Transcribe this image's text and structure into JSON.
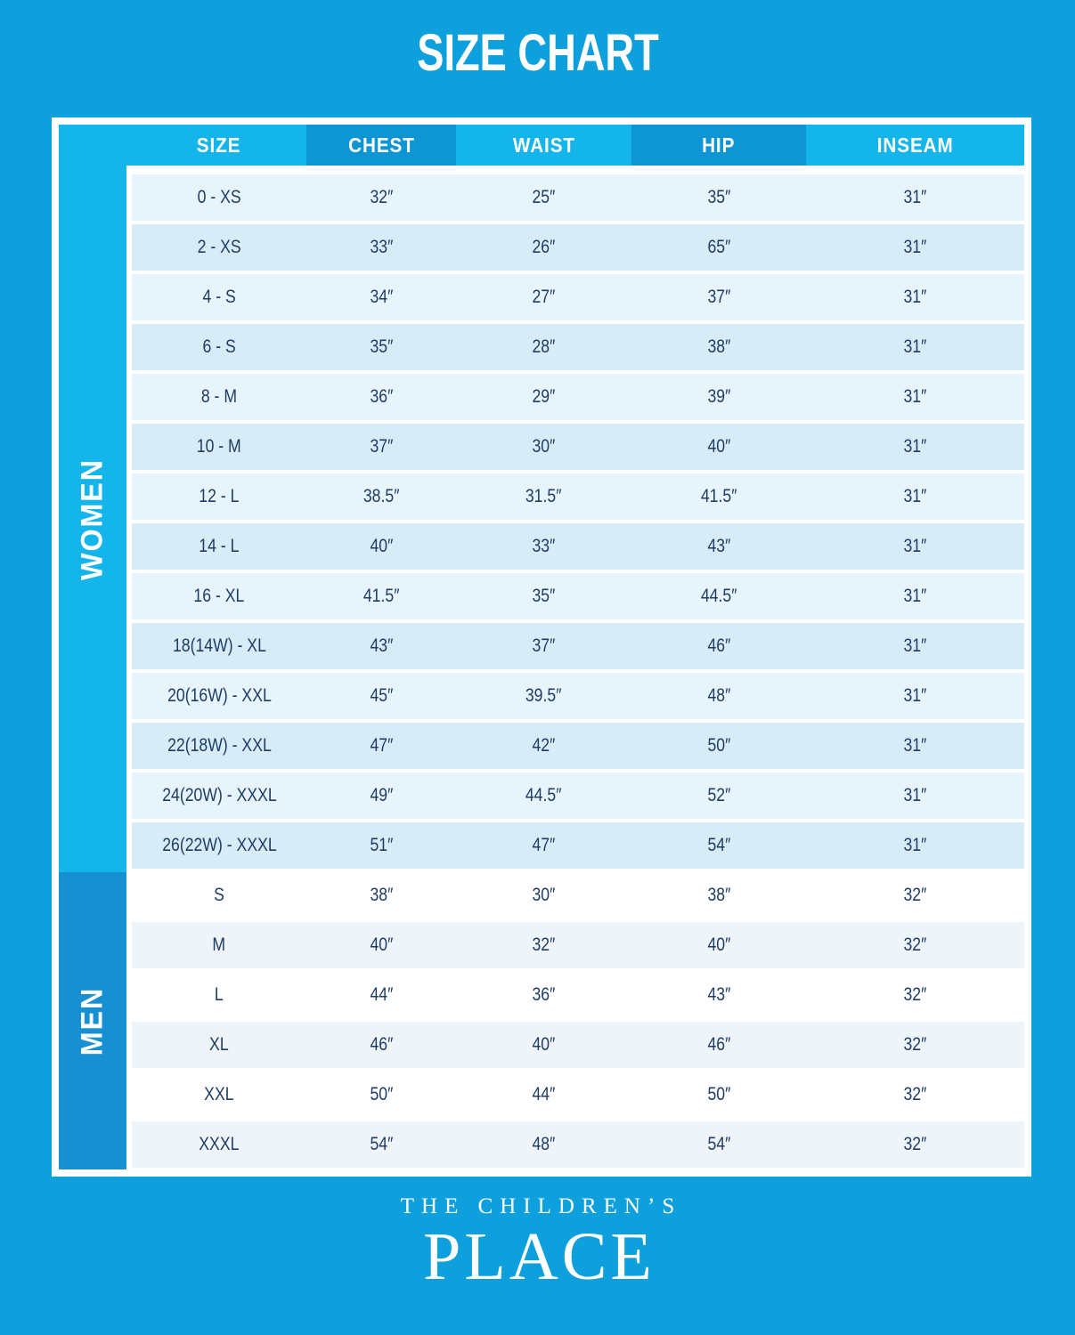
{
  "title": "SIZE CHART",
  "logo": {
    "line1": "THE CHILDREN’S",
    "line2": "PLACE"
  },
  "colors": {
    "background": "#0da0dc",
    "panel_border": "#ffffff",
    "header_light": "#14b5ea",
    "header_dark": "#0e95d3",
    "women_band": "#14b5ea",
    "men_band": "#1790d3",
    "row_women_odd": "#e8f4fb",
    "row_women_even": "#d8ecf7",
    "row_men_odd": "#ffffff",
    "row_men_even": "#eef4f8",
    "cell_text": "#1f3c64",
    "header_text": "#ffffff"
  },
  "chart_data": {
    "type": "table",
    "title": "SIZE CHART",
    "columns": [
      "SIZE",
      "CHEST",
      "WAIST",
      "HIP",
      "INSEAM"
    ],
    "header_dark_columns": [
      false,
      true,
      false,
      true,
      false
    ],
    "sections": [
      {
        "label": "WOMEN",
        "rows": [
          [
            "0 - XS",
            "32″",
            "25″",
            "35″",
            "31″"
          ],
          [
            "2 - XS",
            "33″",
            "26″",
            "65″",
            "31″"
          ],
          [
            "4 - S",
            "34″",
            "27″",
            "37″",
            "31″"
          ],
          [
            "6 - S",
            "35″",
            "28″",
            "38″",
            "31″"
          ],
          [
            "8 - M",
            "36″",
            "29″",
            "39″",
            "31″"
          ],
          [
            "10 - M",
            "37″",
            "30″",
            "40″",
            "31″"
          ],
          [
            "12 - L",
            "38.5″",
            "31.5″",
            "41.5″",
            "31″"
          ],
          [
            "14 - L",
            "40″",
            "33″",
            "43″",
            "31″"
          ],
          [
            "16 - XL",
            "41.5″",
            "35″",
            "44.5″",
            "31″"
          ],
          [
            "18(14W) - XL",
            "43″",
            "37″",
            "46″",
            "31″"
          ],
          [
            "20(16W) - XXL",
            "45″",
            "39.5″",
            "48″",
            "31″"
          ],
          [
            "22(18W) - XXL",
            "47″",
            "42″",
            "50″",
            "31″"
          ],
          [
            "24(20W) - XXXL",
            "49″",
            "44.5″",
            "52″",
            "31″"
          ],
          [
            "26(22W) - XXXL",
            "51″",
            "47″",
            "54″",
            "31″"
          ]
        ]
      },
      {
        "label": "MEN",
        "rows": [
          [
            "S",
            "38″",
            "30″",
            "38″",
            "32″"
          ],
          [
            "M",
            "40″",
            "32″",
            "40″",
            "32″"
          ],
          [
            "L",
            "44″",
            "36″",
            "43″",
            "32″"
          ],
          [
            "XL",
            "46″",
            "40″",
            "46″",
            "32″"
          ],
          [
            "XXL",
            "50″",
            "44″",
            "50″",
            "32″"
          ],
          [
            "XXXL",
            "54″",
            "48″",
            "54″",
            "32″"
          ]
        ]
      }
    ]
  }
}
